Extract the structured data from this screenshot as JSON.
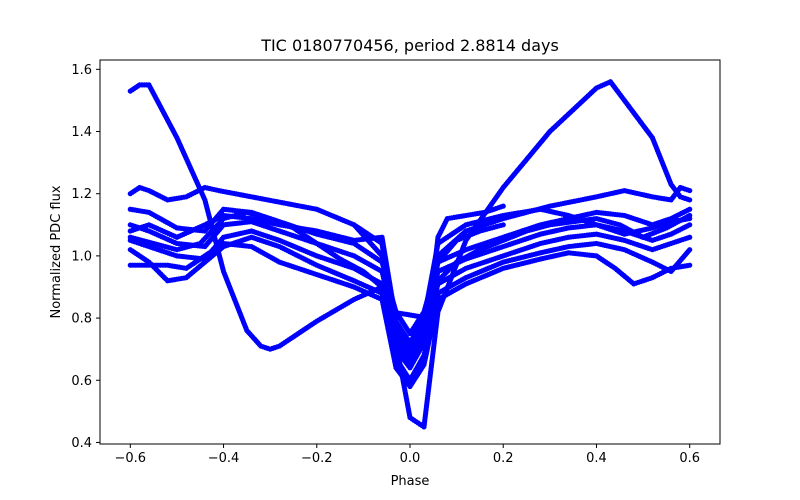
{
  "chart_data": {
    "type": "scatter",
    "title": "TIC 0180770456, period 2.8814 days",
    "xlabel": "Phase",
    "ylabel": "Normalized PDC flux",
    "xlim": [
      -0.665,
      0.665
    ],
    "ylim": [
      0.395,
      1.63
    ],
    "xticks": [
      -0.6,
      -0.4,
      -0.2,
      0.0,
      0.2,
      0.4,
      0.6
    ],
    "xtick_labels": [
      "−0.6",
      "−0.4",
      "−0.2",
      "0.0",
      "0.2",
      "0.4",
      "0.6"
    ],
    "yticks": [
      0.4,
      0.6,
      0.8,
      1.0,
      1.2,
      1.4,
      1.6
    ],
    "ytick_labels": [
      "0.4",
      "0.6",
      "0.8",
      "1.0",
      "1.2",
      "1.4",
      "1.6"
    ],
    "grid": false,
    "legend": "none",
    "marker_color": "#0000ff",
    "series": [
      {
        "x": [
          -0.6,
          -0.58,
          -0.56,
          -0.5,
          -0.44,
          -0.4,
          -0.35,
          -0.32,
          -0.3,
          -0.28,
          -0.2,
          -0.12,
          -0.06,
          -0.03,
          0.0,
          0.03,
          0.06,
          0.12,
          0.2,
          0.3,
          0.4,
          0.43,
          0.46,
          0.52,
          0.56,
          0.58,
          0.6
        ],
        "y": [
          1.53,
          1.55,
          1.55,
          1.38,
          1.18,
          0.95,
          0.76,
          0.71,
          0.7,
          0.71,
          0.79,
          0.86,
          0.9,
          0.72,
          0.48,
          0.45,
          0.82,
          1.05,
          1.22,
          1.4,
          1.54,
          1.56,
          1.5,
          1.38,
          1.23,
          1.19,
          1.18
        ]
      },
      {
        "x": [
          -0.6,
          -0.58,
          -0.56,
          -0.52,
          -0.48,
          -0.44,
          -0.41,
          -0.2,
          -0.12,
          -0.06,
          -0.03,
          0.0,
          0.03,
          0.06,
          0.12,
          0.2,
          0.3,
          0.4,
          0.46,
          0.52,
          0.56,
          0.58,
          0.6
        ],
        "y": [
          1.2,
          1.22,
          1.21,
          1.18,
          1.19,
          1.22,
          1.21,
          1.15,
          1.1,
          1.0,
          0.78,
          0.7,
          0.8,
          1.0,
          1.08,
          1.12,
          1.16,
          1.19,
          1.21,
          1.19,
          1.18,
          1.22,
          1.21
        ]
      },
      {
        "x": [
          -0.6,
          -0.56,
          -0.5,
          -0.44,
          -0.4,
          -0.34,
          -0.28,
          -0.2,
          -0.12,
          -0.06,
          -0.03,
          0.0,
          0.03,
          0.06,
          0.12,
          0.2,
          0.28,
          0.34,
          0.4,
          0.46,
          0.52,
          0.56,
          0.6
        ],
        "y": [
          1.15,
          1.14,
          1.09,
          1.08,
          1.15,
          1.14,
          1.11,
          1.07,
          1.04,
          0.98,
          0.82,
          0.75,
          0.82,
          0.98,
          1.02,
          1.06,
          1.1,
          1.12,
          1.14,
          1.13,
          1.1,
          1.12,
          1.15
        ]
      },
      {
        "x": [
          -0.6,
          -0.56,
          -0.5,
          -0.44,
          -0.4,
          -0.34,
          -0.28,
          -0.2,
          -0.12,
          -0.06,
          -0.03,
          0.0,
          0.03,
          0.06,
          0.12,
          0.2,
          0.28,
          0.34,
          0.4,
          0.46,
          0.52,
          0.56,
          0.6
        ],
        "y": [
          1.1,
          1.08,
          1.04,
          1.03,
          1.1,
          1.11,
          1.08,
          1.04,
          1.0,
          0.95,
          0.76,
          0.68,
          0.77,
          0.95,
          0.99,
          1.03,
          1.07,
          1.09,
          1.1,
          1.08,
          1.05,
          1.07,
          1.1
        ]
      },
      {
        "x": [
          -0.6,
          -0.56,
          -0.5,
          -0.44,
          -0.4,
          -0.34,
          -0.28,
          -0.2,
          -0.12,
          -0.06,
          -0.03,
          0.0,
          0.03,
          0.06,
          0.12,
          0.2,
          0.28,
          0.34,
          0.4,
          0.46,
          0.52,
          0.56,
          0.6
        ],
        "y": [
          1.05,
          1.03,
          1.0,
          0.99,
          1.06,
          1.08,
          1.05,
          1.0,
          0.96,
          0.91,
          0.7,
          0.64,
          0.72,
          0.91,
          0.96,
          1.0,
          1.04,
          1.06,
          1.07,
          1.05,
          1.02,
          1.04,
          1.06
        ]
      },
      {
        "x": [
          -0.6,
          -0.56,
          -0.52,
          -0.48,
          -0.44,
          -0.4,
          -0.34,
          -0.28,
          -0.2,
          -0.12,
          -0.06,
          -0.03,
          0.0,
          0.03,
          0.06,
          0.12,
          0.2,
          0.28,
          0.34,
          0.4,
          0.46,
          0.52,
          0.56,
          0.6
        ],
        "y": [
          1.02,
          0.98,
          0.92,
          0.93,
          0.98,
          1.03,
          1.06,
          1.03,
          0.97,
          0.92,
          0.88,
          0.67,
          0.6,
          0.68,
          0.88,
          0.93,
          0.98,
          1.01,
          1.03,
          1.04,
          1.02,
          0.98,
          0.95,
          1.02
        ]
      },
      {
        "x": [
          -0.6,
          -0.56,
          -0.52,
          -0.48,
          -0.44,
          -0.4,
          -0.34,
          -0.28,
          -0.2,
          -0.12,
          -0.06,
          -0.03,
          0.0,
          0.03,
          0.06,
          0.12,
          0.2,
          0.28,
          0.34,
          0.4,
          0.44,
          0.48,
          0.52,
          0.56,
          0.6
        ],
        "y": [
          0.97,
          0.97,
          0.97,
          0.96,
          1.0,
          1.04,
          1.03,
          0.98,
          0.94,
          0.9,
          0.86,
          0.64,
          0.58,
          0.65,
          0.86,
          0.91,
          0.96,
          0.99,
          1.01,
          1.0,
          0.96,
          0.91,
          0.93,
          0.96,
          0.97
        ]
      },
      {
        "x": [
          -0.6,
          -0.56,
          -0.5,
          -0.44,
          -0.4,
          -0.34,
          -0.28,
          -0.2,
          -0.12,
          -0.06,
          -0.03,
          0.0,
          0.03,
          0.06,
          0.12,
          0.2,
          0.28,
          0.34,
          0.4,
          0.46,
          0.52,
          0.56,
          0.6
        ],
        "y": [
          1.08,
          1.1,
          1.06,
          1.1,
          1.13,
          1.12,
          1.1,
          1.08,
          1.05,
          1.06,
          0.79,
          0.72,
          0.8,
          1.04,
          1.1,
          1.13,
          1.15,
          1.13,
          1.1,
          1.07,
          1.09,
          1.11,
          1.12
        ]
      },
      {
        "x": [
          -0.6,
          -0.55,
          -0.5,
          -0.45,
          -0.4,
          -0.35,
          -0.3,
          -0.25,
          -0.2,
          -0.15,
          -0.1,
          -0.06,
          -0.03,
          0.0,
          0.03,
          0.06,
          0.1,
          0.15,
          0.2,
          0.25,
          0.3,
          0.35,
          0.4,
          0.45,
          0.5,
          0.55,
          0.6
        ],
        "y": [
          1.06,
          1.04,
          1.02,
          1.04,
          1.12,
          1.14,
          1.12,
          1.09,
          1.04,
          0.99,
          0.95,
          0.9,
          0.73,
          0.66,
          0.74,
          0.92,
          0.98,
          1.02,
          1.05,
          1.08,
          1.1,
          1.11,
          1.12,
          1.1,
          1.06,
          1.09,
          1.13
        ]
      },
      {
        "x": [
          -0.06,
          -0.03,
          0.0,
          0.03,
          0.06,
          0.1,
          0.15,
          0.2
        ],
        "y": [
          0.88,
          0.74,
          0.68,
          0.74,
          0.98,
          1.05,
          1.08,
          1.1
        ]
      },
      {
        "x": [
          -0.12,
          -0.08,
          -0.06,
          -0.04,
          0.04,
          0.06,
          0.08,
          0.12,
          0.16,
          0.2
        ],
        "y": [
          1.1,
          1.06,
          1.04,
          0.82,
          0.8,
          1.06,
          1.12,
          1.13,
          1.14,
          1.16
        ]
      }
    ]
  }
}
